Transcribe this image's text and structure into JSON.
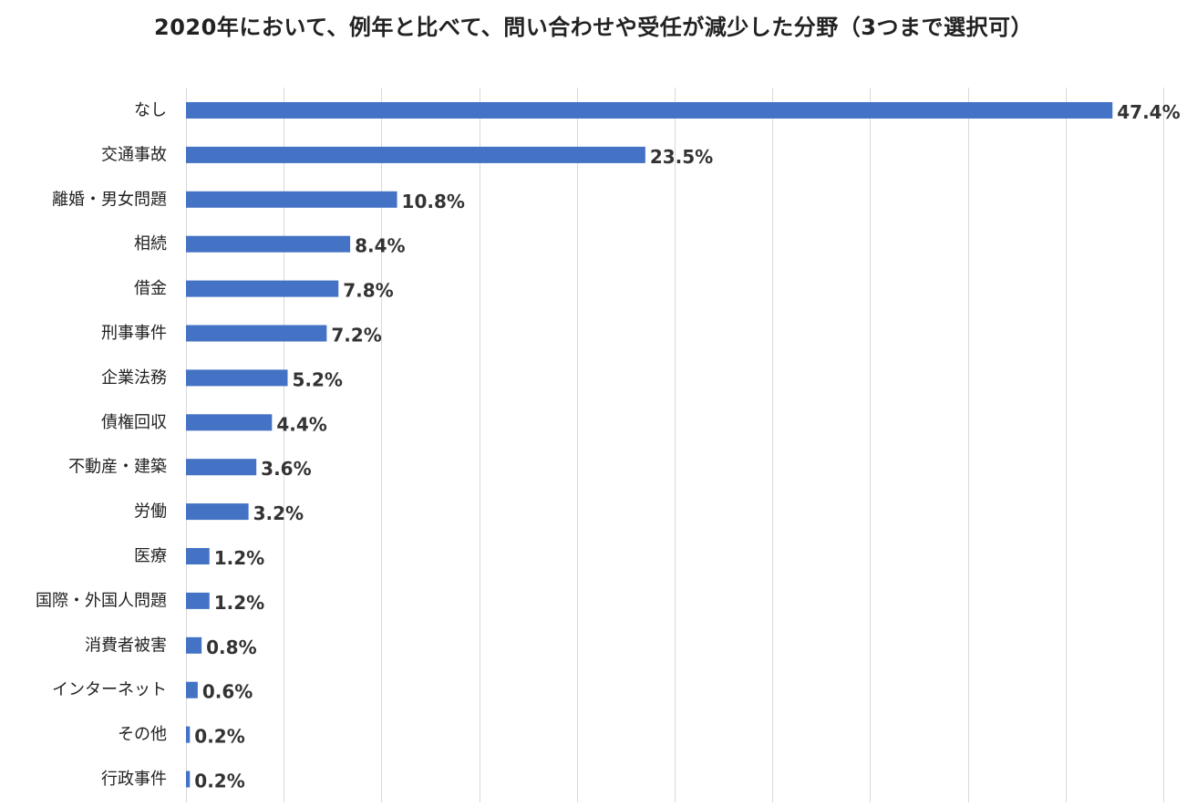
{
  "chart_data": {
    "type": "bar",
    "orientation": "horizontal",
    "title": "2020年において、例年と比べて、問い合わせや受任が減少した分野（3つまで選択可）",
    "categories": [
      "なし",
      "交通事故",
      "離婚・男女問題",
      "相続",
      "借金",
      "刑事事件",
      "企業法務",
      "債権回収",
      "不動産・建築",
      "労働",
      "医療",
      "国際・外国人問題",
      "消費者被害",
      "インターネット",
      "その他",
      "行政事件"
    ],
    "values": [
      47.4,
      23.5,
      10.8,
      8.4,
      7.8,
      7.2,
      5.2,
      4.4,
      3.6,
      3.2,
      1.2,
      1.2,
      0.8,
      0.6,
      0.2,
      0.2
    ],
    "value_labels": [
      "47.4%",
      "23.5%",
      "10.8%",
      "8.4%",
      "7.8%",
      "7.2%",
      "5.2%",
      "4.4%",
      "3.6%",
      "3.2%",
      "1.2%",
      "1.2%",
      "0.8%",
      "0.6%",
      "0.2%",
      "0.2%"
    ],
    "xlim": [
      0,
      50
    ],
    "grid": true,
    "bar_color": "#4472c4",
    "grid_color": "#d9d9d9"
  }
}
